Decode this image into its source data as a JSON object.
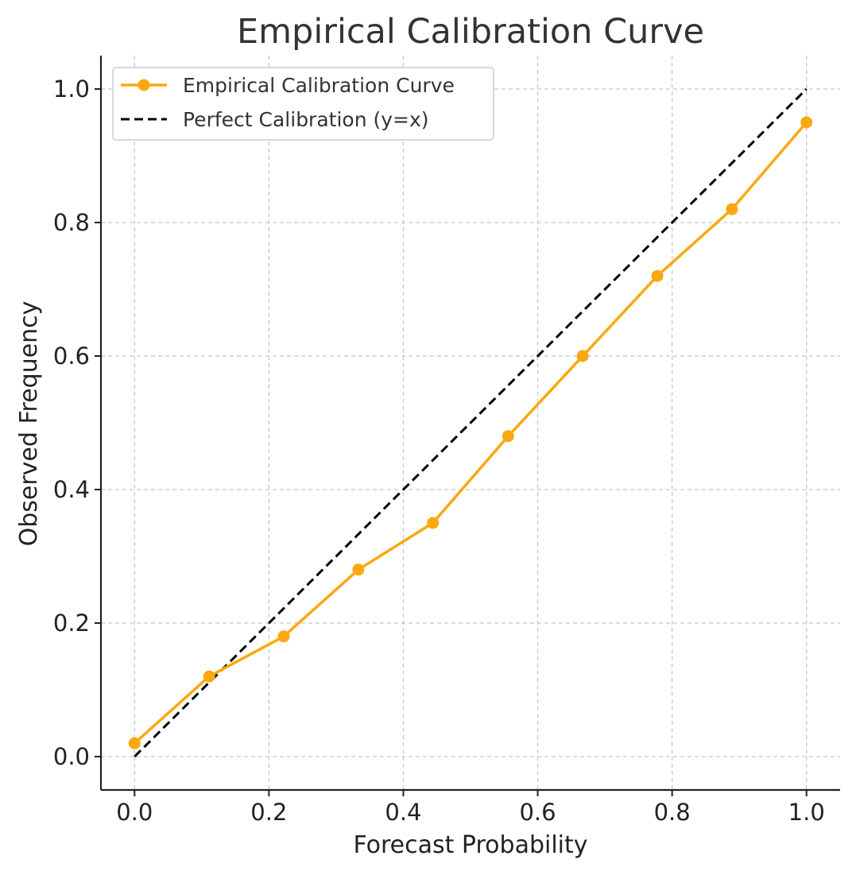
{
  "chart_data": {
    "type": "line",
    "title": "Empirical Calibration Curve",
    "xlabel": "Forecast Probability",
    "ylabel": "Observed Frequency",
    "xlim": [
      -0.05,
      1.05
    ],
    "ylim": [
      -0.05,
      1.05
    ],
    "xticks": [
      "0.0",
      "0.2",
      "0.4",
      "0.6",
      "0.8",
      "1.0"
    ],
    "yticks": [
      "0.0",
      "0.2",
      "0.4",
      "0.6",
      "0.8",
      "1.0"
    ],
    "grid": true,
    "legend_position": "top-left",
    "series": [
      {
        "name": "Empirical Calibration Curve",
        "color": "#F9A90F",
        "style": "solid-with-markers",
        "x": [
          0.0,
          0.111,
          0.222,
          0.333,
          0.444,
          0.556,
          0.667,
          0.778,
          0.889,
          1.0
        ],
        "y": [
          0.02,
          0.12,
          0.18,
          0.28,
          0.35,
          0.48,
          0.6,
          0.72,
          0.82,
          0.95
        ]
      },
      {
        "name": "Perfect Calibration (y=x)",
        "color": "#000000",
        "style": "dashed",
        "x": [
          0.0,
          1.0
        ],
        "y": [
          0.0,
          1.0
        ]
      }
    ]
  }
}
